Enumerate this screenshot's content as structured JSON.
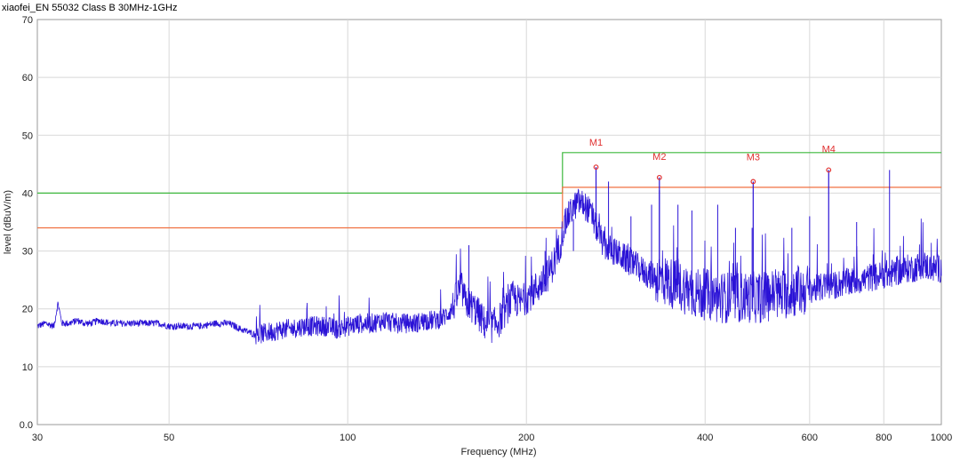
{
  "chart_data": {
    "type": "line",
    "title": "xiaofei_EN 55032 Class B 30MHz-1GHz",
    "xlabel": "Frequency (MHz)",
    "ylabel": "level (dBuV/m)",
    "xscale": "log",
    "xlim": [
      30,
      1000
    ],
    "ylim": [
      0,
      70
    ],
    "xticks": [
      30,
      50,
      100,
      200,
      400,
      600,
      800,
      1000
    ],
    "xtick_labels": [
      "30",
      "50",
      "100",
      "200",
      "400",
      "600",
      "800",
      "1000"
    ],
    "yticks": [
      0,
      10,
      20,
      30,
      40,
      50,
      60,
      70
    ],
    "ytick_labels": [
      "0.0",
      "10",
      "20",
      "30",
      "40",
      "50",
      "60",
      "70"
    ],
    "grid": true,
    "series": [
      {
        "color": "#2a12d6",
        "x": [
          30,
          31,
          32,
          32.5,
          33,
          34,
          35,
          36,
          37,
          38,
          40,
          42,
          44,
          46,
          48,
          50,
          53,
          56,
          60,
          63,
          66,
          70,
          74,
          78,
          80,
          84,
          88,
          92,
          96,
          100,
          105,
          110,
          115,
          120,
          125,
          130,
          135,
          140,
          145,
          150,
          155,
          158,
          160,
          165,
          170,
          175,
          180,
          185,
          190,
          195,
          200,
          205,
          210,
          215,
          220,
          225,
          230,
          235,
          240,
          245,
          250,
          255,
          260,
          265,
          270,
          275,
          280,
          290,
          300,
          310,
          320,
          330,
          340,
          350,
          360,
          370,
          380,
          390,
          400,
          420,
          440,
          460,
          480,
          500,
          520,
          540,
          560,
          580,
          600,
          620,
          640,
          660,
          680,
          700,
          720,
          740,
          760,
          780,
          800,
          820,
          840,
          860,
          880,
          900,
          920,
          940,
          960,
          980,
          1000
        ],
        "y": [
          17,
          17.5,
          17,
          21,
          17.5,
          17.5,
          18,
          17.5,
          17.5,
          18,
          17.5,
          17.5,
          17.5,
          17.5,
          17.5,
          17,
          17,
          17,
          17.5,
          17.5,
          16.5,
          15.5,
          16,
          16.5,
          16.5,
          17,
          17,
          17,
          16.5,
          17,
          17.5,
          17.5,
          18,
          17.5,
          17.5,
          17.5,
          18,
          18,
          18.5,
          20,
          24,
          21,
          21,
          19.5,
          17.5,
          17,
          18,
          20,
          22,
          21,
          22,
          23,
          24,
          25,
          27,
          29,
          33,
          36,
          37.5,
          38.5,
          38,
          37,
          35,
          33,
          31,
          30.5,
          30,
          29,
          28,
          27,
          26,
          25.5,
          25,
          24.5,
          24,
          23.5,
          23,
          22.5,
          22.5,
          22,
          22,
          22,
          22,
          22,
          22.5,
          22.5,
          23,
          23,
          23.5,
          23.5,
          24,
          24,
          24.5,
          24.5,
          25,
          25,
          25.5,
          25.5,
          26,
          26,
          26.5,
          26.5,
          27,
          27,
          27.5,
          27.5,
          27,
          27,
          27
        ],
        "peaks": [
          {
            "x": 160,
            "y": 31
          },
          {
            "x": 215,
            "y": 30
          },
          {
            "x": 240,
            "y": 30
          },
          {
            "x": 262,
            "y": 42
          },
          {
            "x": 275,
            "y": 42
          },
          {
            "x": 300,
            "y": 36
          },
          {
            "x": 325,
            "y": 38
          },
          {
            "x": 335,
            "y": 40.5
          },
          {
            "x": 360,
            "y": 38
          },
          {
            "x": 380,
            "y": 37
          },
          {
            "x": 420,
            "y": 38
          },
          {
            "x": 450,
            "y": 34
          },
          {
            "x": 480,
            "y": 34
          },
          {
            "x": 560,
            "y": 34
          },
          {
            "x": 600,
            "y": 36
          },
          {
            "x": 720,
            "y": 35
          },
          {
            "x": 818,
            "y": 44
          }
        ]
      }
    ],
    "limits": [
      {
        "color": "#3cb83c",
        "x": [
          30,
          230,
          230,
          1000
        ],
        "y": [
          40,
          40,
          47,
          47
        ]
      },
      {
        "color": "#f07040",
        "x": [
          30,
          230,
          230,
          1000
        ],
        "y": [
          34,
          34,
          41,
          41
        ]
      }
    ],
    "markers": [
      {
        "label": "M1",
        "x": 262,
        "y": 44.5
      },
      {
        "label": "M2",
        "x": 335,
        "y": 42.7
      },
      {
        "label": "M3",
        "x": 482,
        "y": 42
      },
      {
        "label": "M4",
        "x": 646,
        "y": 44
      }
    ]
  }
}
